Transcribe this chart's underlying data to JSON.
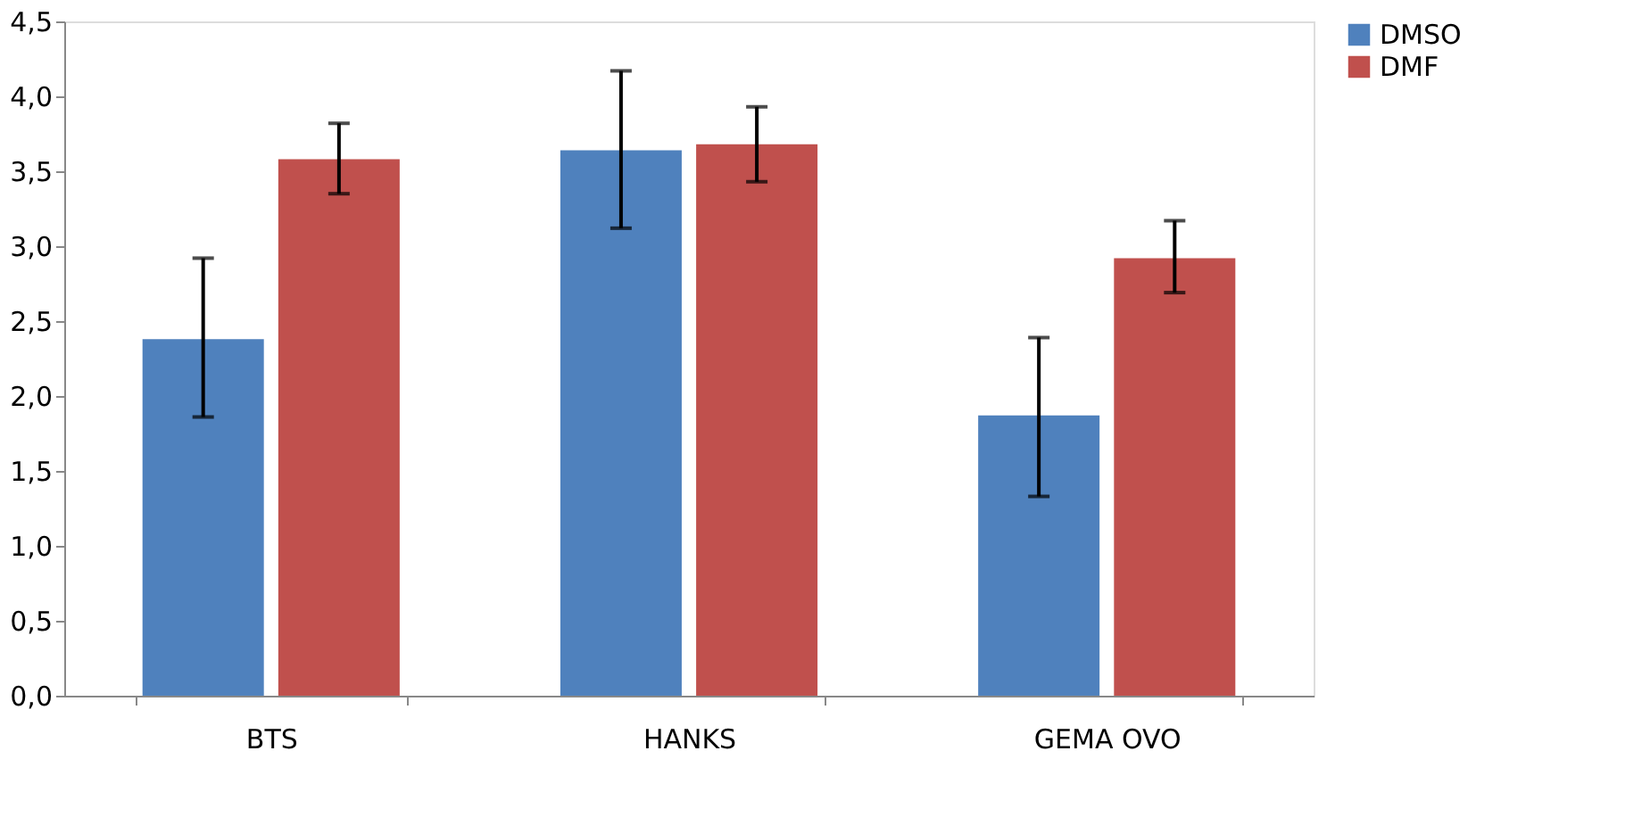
{
  "chart_data": {
    "type": "bar",
    "categories": [
      "BTS",
      "HANKS",
      "GEMA OVO"
    ],
    "series": [
      {
        "name": "DMSO",
        "color": "#4f81bd",
        "values": [
          2.38,
          3.64,
          1.87
        ],
        "errors": [
          [
            1.86,
            2.92
          ],
          [
            3.12,
            4.17
          ],
          [
            1.33,
            2.39
          ]
        ]
      },
      {
        "name": "DMF",
        "color": "#c0504d",
        "values": [
          3.58,
          3.68,
          2.92
        ],
        "errors": [
          [
            3.35,
            3.82
          ],
          [
            3.43,
            3.93
          ],
          [
            2.69,
            3.17
          ]
        ]
      }
    ],
    "ylim": [
      0,
      4.5
    ],
    "yticks": [
      {
        "value": 0,
        "label": "0,0"
      },
      {
        "value": 0.5,
        "label": "0,5"
      },
      {
        "value": 1,
        "label": "1,0"
      },
      {
        "value": 1.5,
        "label": "1,5"
      },
      {
        "value": 2,
        "label": "2,0"
      },
      {
        "value": 2.5,
        "label": "2,5"
      },
      {
        "value": 3,
        "label": "3,0"
      },
      {
        "value": 3.5,
        "label": "3,5"
      },
      {
        "value": 4,
        "label": "4,0"
      },
      {
        "value": 4.5,
        "label": "4,5"
      }
    ],
    "grid": false,
    "legend": "right"
  }
}
